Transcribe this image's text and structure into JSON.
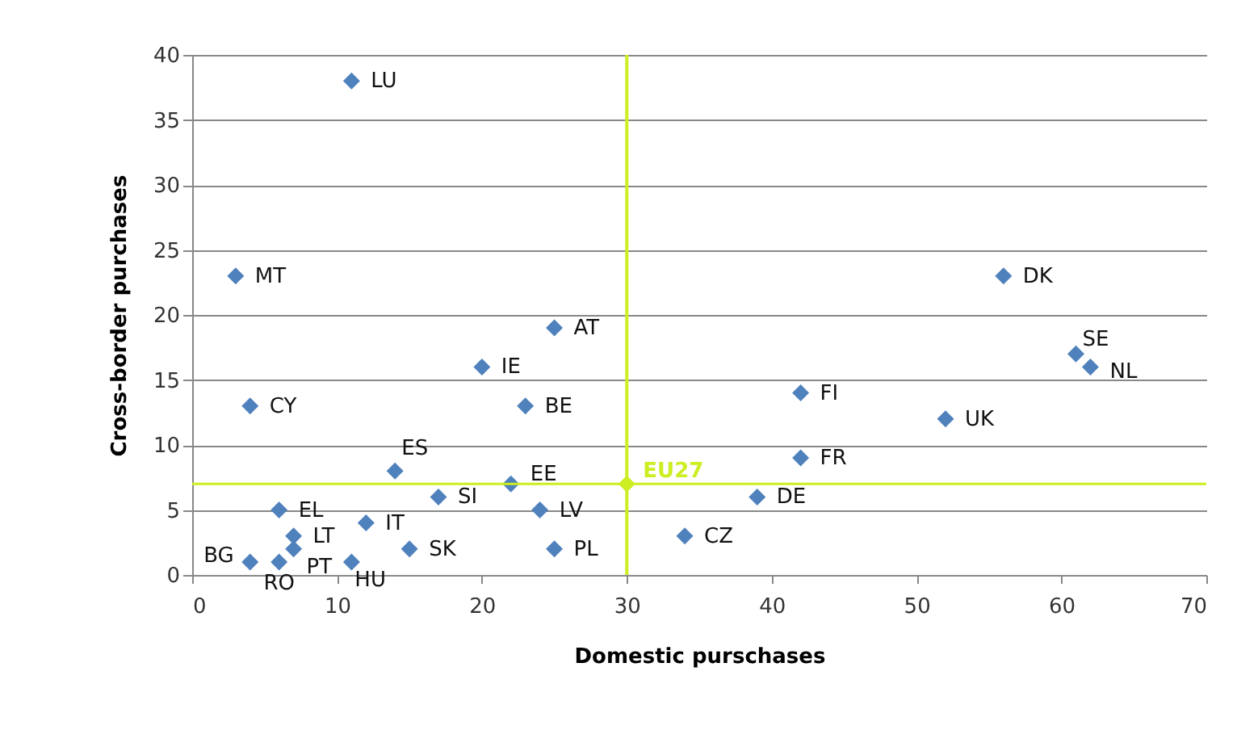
{
  "chart_data": {
    "type": "scatter",
    "xlabel": "Domestic purschases",
    "ylabel": "Cross-border purchases",
    "series": [
      {
        "color": "#4f81bd",
        "x": [
          11,
          3,
          56,
          25,
          61,
          20,
          62,
          4,
          23,
          42,
          52,
          42,
          14,
          22,
          17,
          39,
          6,
          24,
          12,
          7,
          34,
          7,
          15,
          25,
          4,
          6,
          11
        ],
        "values": [
          38,
          23,
          23,
          19,
          17,
          16,
          16,
          13,
          13,
          14,
          12,
          9,
          8,
          7,
          6,
          6,
          5,
          5,
          4,
          3,
          3,
          2,
          2,
          2,
          1,
          1,
          1
        ]
      },
      {
        "color": "#ccee22",
        "x": [
          30
        ],
        "values": [
          7
        ]
      }
    ],
    "annotations": [
      {
        "text": "LU",
        "x": 11,
        "y": 38
      },
      {
        "text": "MT",
        "x": 3,
        "y": 23
      },
      {
        "text": "DK",
        "x": 56,
        "y": 23
      },
      {
        "text": "AT",
        "x": 25,
        "y": 19
      },
      {
        "text": "SE",
        "x": 61,
        "y": 17
      },
      {
        "text": "IE",
        "x": 20,
        "y": 16
      },
      {
        "text": "NL",
        "x": 62,
        "y": 16
      },
      {
        "text": "CY",
        "x": 4,
        "y": 13
      },
      {
        "text": "BE",
        "x": 23,
        "y": 13
      },
      {
        "text": "FI",
        "x": 42,
        "y": 14
      },
      {
        "text": "UK",
        "x": 52,
        "y": 12
      },
      {
        "text": "FR",
        "x": 42,
        "y": 9
      },
      {
        "text": "ES",
        "x": 14,
        "y": 8
      },
      {
        "text": "EE",
        "x": 22,
        "y": 7
      },
      {
        "text": "SI",
        "x": 17,
        "y": 6
      },
      {
        "text": "DE",
        "x": 39,
        "y": 6
      },
      {
        "text": "EL",
        "x": 6,
        "y": 5
      },
      {
        "text": "LV",
        "x": 24,
        "y": 5
      },
      {
        "text": "IT",
        "x": 12,
        "y": 4
      },
      {
        "text": "LT",
        "x": 7,
        "y": 3
      },
      {
        "text": "CZ",
        "x": 34,
        "y": 3
      },
      {
        "text": "PT",
        "x": 7,
        "y": 2
      },
      {
        "text": "SK",
        "x": 15,
        "y": 2
      },
      {
        "text": "PL",
        "x": 25,
        "y": 2
      },
      {
        "text": "BG",
        "x": 4,
        "y": 1
      },
      {
        "text": "RO",
        "x": 6,
        "y": 1
      },
      {
        "text": "HU",
        "x": 11,
        "y": 1
      },
      {
        "text": "EU27",
        "x": 30,
        "y": 7
      }
    ],
    "ref_lines": [
      {
        "axis": "x",
        "value": 30,
        "color": "#ccee22"
      },
      {
        "axis": "y",
        "value": 7,
        "color": "#ccee22"
      }
    ],
    "xlim": [
      0,
      70
    ],
    "xticks": [
      0,
      10,
      20,
      30,
      40,
      50,
      60,
      70
    ],
    "ylim": [
      0,
      40
    ],
    "yticks": [
      0,
      5,
      10,
      15,
      20,
      25,
      30,
      35,
      40
    ],
    "grid": "y",
    "marker": "diamond"
  }
}
